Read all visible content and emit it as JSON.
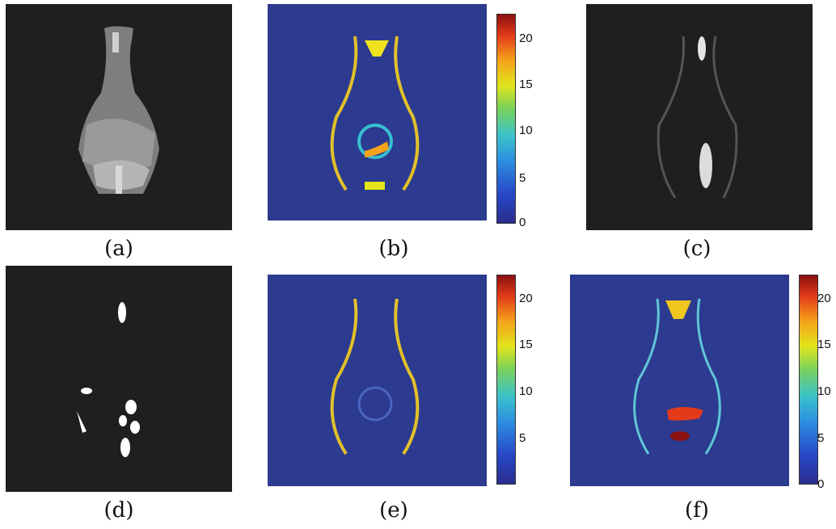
{
  "captions": {
    "a": "(a)",
    "b": "(b)",
    "c": "(c)",
    "d": "(d)",
    "e": "(e)",
    "f": "(f)"
  },
  "colorbars": {
    "b": {
      "ticks": [
        "20",
        "15",
        "10",
        "5",
        "0"
      ]
    },
    "e": {
      "ticks": [
        "20",
        "15",
        "10",
        "5"
      ]
    },
    "f": {
      "ticks": [
        "20",
        "15",
        "10",
        "5",
        "0"
      ]
    }
  },
  "colors": {
    "dark_bg": "#201e1f",
    "heatmap_bg": "#2c3a8f"
  }
}
